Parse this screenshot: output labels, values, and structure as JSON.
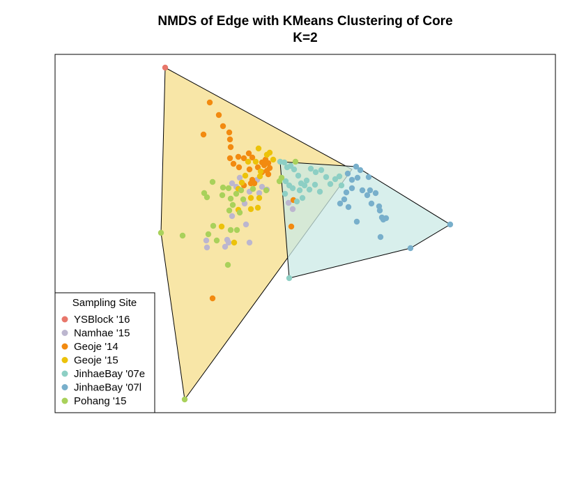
{
  "chart_data": {
    "type": "scatter",
    "title": "NMDS of Edge with KMeans Clustering of Core",
    "subtitle": "K=2",
    "xlabel": "",
    "ylabel": "",
    "axes_visible": false,
    "grid": false,
    "legend": {
      "title": "Sampling Site",
      "placement": "bottom-left",
      "entries": [
        {
          "label": "YSBlock '16",
          "color": "#E8776B"
        },
        {
          "label": "Namhae '15",
          "color": "#BCB6CF"
        },
        {
          "label": "Geoje '14",
          "color": "#F28A10"
        },
        {
          "label": "Geoje '15",
          "color": "#ECC20A"
        },
        {
          "label": "JinhaeBay '07e",
          "color": "#8DCFC4"
        },
        {
          "label": "JinhaeBay '07l",
          "color": "#78AFCB"
        },
        {
          "label": "Pohang '15",
          "color": "#A9D15B"
        }
      ]
    },
    "hulls": [
      {
        "cluster": 1,
        "fill": "#F5DE8A",
        "vertices": [
          [
            237,
            97
          ],
          [
            505,
            243
          ],
          [
            265,
            573
          ],
          [
            231,
            334
          ]
        ]
      },
      {
        "cluster": 2,
        "fill": "#CBE9E6",
        "vertices": [
          [
            402,
            232
          ],
          [
            511,
            239
          ],
          [
            646,
            322
          ],
          [
            589,
            356
          ],
          [
            415,
            399
          ]
        ]
      }
    ],
    "series": [
      {
        "name": "YSBlock '16",
        "color": "#E8776B",
        "points": [
          [
            237,
            97
          ]
        ]
      },
      {
        "name": "Namhae '15",
        "color": "#BCB6CF",
        "points": [
          [
            333,
            263
          ],
          [
            339,
            268
          ],
          [
            344,
            255
          ],
          [
            358,
            275
          ],
          [
            376,
            268
          ],
          [
            372,
            277
          ],
          [
            383,
            272
          ],
          [
            351,
            292
          ],
          [
            369,
            258
          ],
          [
            353,
            322
          ],
          [
            326,
            344
          ],
          [
            323,
            354
          ],
          [
            328,
            348
          ],
          [
            297,
            355
          ],
          [
            296,
            345
          ],
          [
            333,
            310
          ],
          [
            358,
            348
          ],
          [
            414,
            291
          ],
          [
            420,
            300
          ]
        ]
      },
      {
        "name": "Geoje '14",
        "color": "#F28A10",
        "points": [
          [
            301,
            147
          ],
          [
            314,
            165
          ],
          [
            320,
            181
          ],
          [
            329,
            190
          ],
          [
            292,
            193
          ],
          [
            330,
            200
          ],
          [
            331,
            211
          ],
          [
            342,
            225
          ],
          [
            330,
            227
          ],
          [
            335,
            235
          ],
          [
            343,
            240
          ],
          [
            350,
            227
          ],
          [
            357,
            220
          ],
          [
            362,
            226
          ],
          [
            370,
            240
          ],
          [
            376,
            233
          ],
          [
            381,
            229
          ],
          [
            385,
            234
          ],
          [
            379,
            237
          ],
          [
            387,
            241
          ],
          [
            383,
            245
          ],
          [
            376,
            247
          ],
          [
            385,
            250
          ],
          [
            358,
            243
          ],
          [
            360,
            263
          ],
          [
            350,
            266
          ],
          [
            362,
            258
          ],
          [
            365,
            263
          ],
          [
            418,
            325
          ],
          [
            305,
            428
          ],
          [
            421,
            287
          ]
        ]
      },
      {
        "name": "Geoje '15",
        "color": "#ECC20A",
        "points": [
          [
            371,
            213
          ],
          [
            387,
            219
          ],
          [
            383,
            222
          ],
          [
            356,
            232
          ],
          [
            367,
            232
          ],
          [
            374,
            246
          ],
          [
            392,
            229
          ],
          [
            373,
            253
          ],
          [
            352,
            252
          ],
          [
            347,
            262
          ],
          [
            342,
            271
          ],
          [
            360,
            284
          ],
          [
            370,
            298
          ],
          [
            372,
            284
          ],
          [
            360,
            300
          ],
          [
            342,
            301
          ],
          [
            336,
            348
          ],
          [
            318,
            325
          ]
        ]
      },
      {
        "name": "JinhaeBay '07e",
        "color": "#8DCFC4",
        "points": [
          [
            402,
            232
          ],
          [
            408,
            233
          ],
          [
            412,
            240
          ],
          [
            417,
            238
          ],
          [
            422,
            243
          ],
          [
            428,
            252
          ],
          [
            432,
            263
          ],
          [
            440,
            259
          ],
          [
            446,
            242
          ],
          [
            453,
            247
          ],
          [
            461,
            244
          ],
          [
            468,
            254
          ],
          [
            474,
            264
          ],
          [
            481,
            257
          ],
          [
            487,
            253
          ],
          [
            490,
            266
          ],
          [
            410,
            260
          ],
          [
            415,
            266
          ],
          [
            420,
            270
          ],
          [
            430,
            273
          ],
          [
            437,
            266
          ],
          [
            444,
            272
          ],
          [
            452,
            265
          ],
          [
            459,
            275
          ],
          [
            409,
            278
          ],
          [
            415,
            399
          ],
          [
            426,
            289
          ],
          [
            434,
            284
          ]
        ]
      },
      {
        "name": "JinhaeBay '07l",
        "color": "#78AFCB",
        "points": [
          [
            511,
            239
          ],
          [
            499,
            249
          ],
          [
            505,
            258
          ],
          [
            513,
            255
          ],
          [
            517,
            244
          ],
          [
            529,
            254
          ],
          [
            531,
            273
          ],
          [
            539,
            277
          ],
          [
            520,
            273
          ],
          [
            505,
            270
          ],
          [
            497,
            276
          ],
          [
            494,
            286
          ],
          [
            488,
            292
          ],
          [
            500,
            297
          ],
          [
            527,
            280
          ],
          [
            533,
            292
          ],
          [
            544,
            296
          ],
          [
            545,
            302
          ],
          [
            550,
            315
          ],
          [
            548,
            312
          ],
          [
            554,
            313
          ],
          [
            512,
            318
          ],
          [
            546,
            340
          ],
          [
            589,
            356
          ],
          [
            646,
            322
          ]
        ]
      },
      {
        "name": "Pohang '15",
        "color": "#A9D15B",
        "points": [
          [
            305,
            261
          ],
          [
            320,
            269
          ],
          [
            328,
            270
          ],
          [
            319,
            280
          ],
          [
            331,
            285
          ],
          [
            339,
            278
          ],
          [
            346,
            273
          ],
          [
            349,
            286
          ],
          [
            334,
            294
          ],
          [
            329,
            302
          ],
          [
            344,
            305
          ],
          [
            293,
            277
          ],
          [
            297,
            283
          ],
          [
            299,
            336
          ],
          [
            306,
            324
          ],
          [
            311,
            345
          ],
          [
            331,
            330
          ],
          [
            340,
            330
          ],
          [
            231,
            334
          ],
          [
            262,
            338
          ],
          [
            327,
            380
          ],
          [
            265,
            573
          ],
          [
            363,
            271
          ],
          [
            382,
            273
          ],
          [
            401,
            260
          ],
          [
            404,
            255
          ],
          [
            424,
            232
          ]
        ]
      }
    ]
  }
}
